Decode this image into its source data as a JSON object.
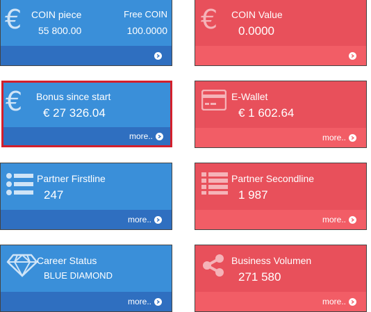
{
  "cards": {
    "coin_piece": {
      "title": "COIN piece",
      "value": "55 800.00",
      "sub_title": "Free COIN",
      "sub_value": "100.0000"
    },
    "coin_value": {
      "title": "COIN Value",
      "value": "0.0000"
    },
    "bonus": {
      "title": "Bonus since start",
      "value": "€ 27 326.04",
      "more": "more.."
    },
    "ewallet": {
      "title": "E-Wallet",
      "value": "€ 1 602.64",
      "more": "more.."
    },
    "partner_first": {
      "title": "Partner Firstline",
      "value": "247",
      "more": "more.."
    },
    "partner_second": {
      "title": "Partner Secondline",
      "value": "1 987",
      "more": "more.."
    },
    "career": {
      "title": "Career Status",
      "value": "BLUE DIAMOND",
      "more": "more.."
    },
    "business": {
      "title": "Business Volumen",
      "value": "271 580",
      "more": "more.."
    }
  },
  "colors": {
    "blue": "#3a8fd9",
    "blue_footer": "#2f6fc0",
    "red": "#e8505b",
    "red_footer": "#f25d66",
    "selected_border": "#d41f2b"
  },
  "icons": {
    "coin_piece": "euro-icon",
    "coin_value": "euro-icon",
    "bonus": "euro-icon",
    "ewallet": "credit-card-icon",
    "partner_first": "list-icon",
    "partner_second": "list-icon",
    "career": "diamond-icon",
    "business": "share-icon"
  }
}
